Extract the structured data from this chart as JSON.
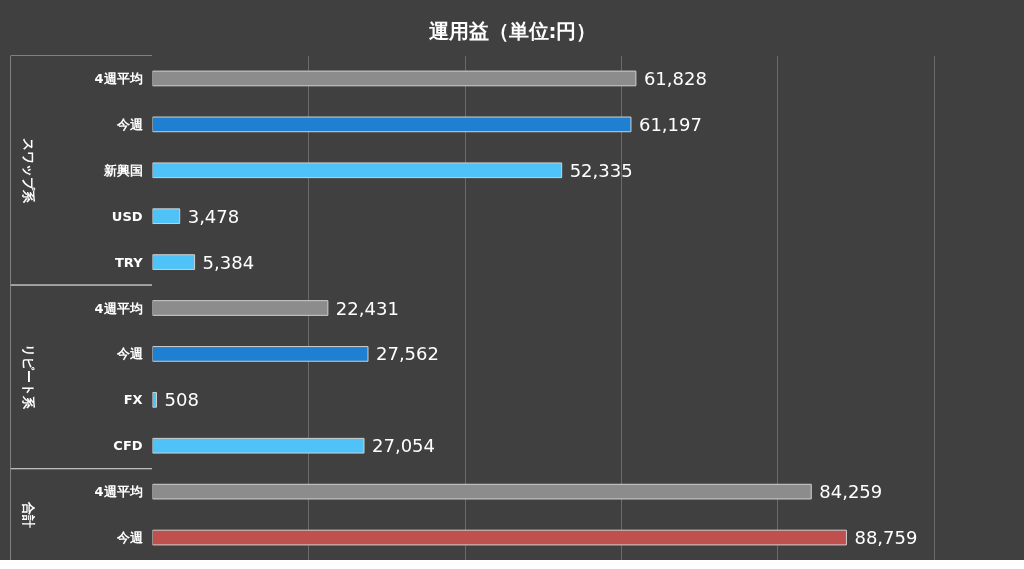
{
  "chart_data": {
    "type": "bar",
    "orientation": "horizontal",
    "title": "運用益（単位:円）",
    "categories": [
      "4週平均",
      "今週",
      "新興国",
      "USD",
      "TRY",
      "4週平均",
      "今週",
      "FX",
      "CFD",
      "4週平均",
      "今週"
    ],
    "values": [
      61828,
      61197,
      52335,
      3478,
      5384,
      22431,
      27562,
      508,
      27054,
      84259,
      88759
    ],
    "colors": [
      "#8c8c8c",
      "#1f7fd0",
      "#4fc3f7",
      "#4fc3f7",
      "#4fc3f7",
      "#8c8c8c",
      "#1f7fd0",
      "#4fc3f7",
      "#4fc3f7",
      "#8c8c8c",
      "#c0504d"
    ],
    "value_labels": [
      "61,828",
      "61,197",
      "52,335",
      "3,478",
      "5,384",
      "22,431",
      "27,562",
      "508",
      "27,054",
      "84,259",
      "88,759"
    ],
    "xlim": [
      0,
      110000
    ],
    "xticks": [
      {
        "value": 20000,
        "label": null
      },
      {
        "value": 40000,
        "label": null
      },
      {
        "value": 60000,
        "label": null
      },
      {
        "value": 80000,
        "label": null
      },
      {
        "value": 100000,
        "label": null
      }
    ],
    "grid": "x",
    "tick_labels": "y",
    "annotations": [
      "スワップ系",
      "リピート系",
      "合計"
    ]
  }
}
